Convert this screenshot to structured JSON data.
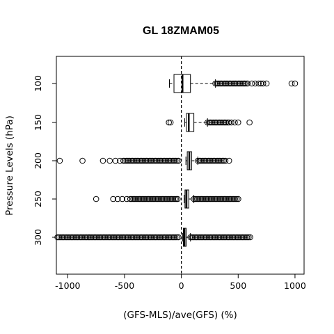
{
  "chart_data": {
    "type": "boxplot",
    "orientation": "horizontal",
    "title": "GL 18ZMAM05",
    "xlabel": "(GFS-MLS)/ave(GFS) (%)",
    "ylabel": "Pressure Levels (hPa)",
    "xlim": [
      -1100,
      1080
    ],
    "x_ticks": [
      -1000,
      -500,
      0,
      500,
      1000
    ],
    "x_tick_labels": [
      "-1000",
      "-500",
      "0",
      "500",
      "1000"
    ],
    "reference_line": {
      "x": 0,
      "style": "dashed"
    },
    "categories": [
      "100",
      "150",
      "200",
      "250",
      "300"
    ],
    "boxes": [
      {
        "level": "100",
        "whisker_low": -105,
        "q1": -65,
        "median": 10,
        "q3": 80,
        "whisker_high": 300,
        "outliers_low": [],
        "outliers_high_dense": [
          300,
          590
        ],
        "outliers_high": [
          620,
          650,
          680,
          700,
          720,
          750,
          970,
          1000
        ]
      },
      {
        "level": "150",
        "whisker_low": 30,
        "q1": 45,
        "median": 65,
        "q3": 110,
        "whisker_high": 230,
        "outliers_low": [
          -110,
          -95
        ],
        "outliers_high_dense": [
          230,
          420
        ],
        "outliers_high": [
          440,
          470,
          500,
          600
        ]
      },
      {
        "level": "200",
        "whisker_low": 40,
        "q1": 52,
        "median": 70,
        "q3": 90,
        "whisker_high": 145,
        "outliers_low": [
          -1070,
          -870,
          -690,
          -630,
          -580,
          -540
        ],
        "outliers_low_dense": [
          -510,
          -20
        ],
        "outliers_high_dense": [
          145,
          390
        ],
        "outliers_high": [
          420
        ]
      },
      {
        "level": "250",
        "whisker_low": 25,
        "q1": 32,
        "median": 45,
        "q3": 65,
        "whisker_high": 110,
        "outliers_low": [
          -750,
          -600,
          -560,
          -520,
          -480
        ],
        "outliers_low_dense": [
          -450,
          -20
        ],
        "outliers_high_dense": [
          110,
          510
        ],
        "outliers_high": []
      },
      {
        "level": "300",
        "whisker_low": 12,
        "q1": 18,
        "median": 28,
        "q3": 42,
        "whisker_high": 80,
        "outliers_low": [],
        "outliers_low_dense": [
          -1090,
          -20
        ],
        "outliers_high_dense": [
          80,
          610
        ],
        "outliers_high": []
      }
    ]
  }
}
